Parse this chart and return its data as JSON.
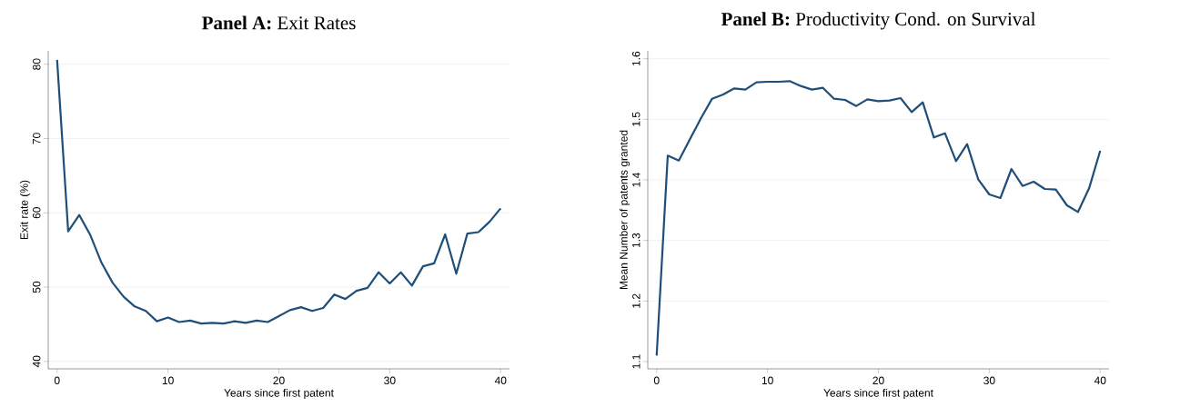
{
  "chart_data": [
    {
      "type": "line",
      "title": "**Panel A:** Exit Rates",
      "xlabel": "Years since first patent",
      "ylabel": "Exit rate (%)",
      "x": [
        0,
        1,
        2,
        3,
        4,
        5,
        6,
        7,
        8,
        9,
        10,
        11,
        12,
        13,
        14,
        15,
        16,
        17,
        18,
        19,
        20,
        21,
        22,
        23,
        24,
        25,
        26,
        27,
        28,
        29,
        30,
        31,
        32,
        33,
        34,
        35,
        36,
        37,
        38,
        39,
        40
      ],
      "series": [
        {
          "color": "#1f4e79",
          "values": [
            80.6,
            57.5,
            59.7,
            57,
            53.3,
            50.6,
            48.7,
            47.4,
            46.8,
            45.4,
            45.9,
            45.3,
            45.5,
            45.1,
            45.2,
            45.1,
            45.4,
            45.2,
            45.5,
            45.3,
            46.1,
            46.9,
            47.3,
            46.8,
            47.2,
            49,
            48.4,
            49.5,
            49.9,
            52,
            50.5,
            52,
            50.2,
            52.8,
            53.2,
            57.1,
            51.8,
            57.2,
            57.4,
            58.8,
            60.6
          ]
        }
      ],
      "xlim": [
        -0.8,
        40.8
      ],
      "ylim": [
        39,
        81.8
      ],
      "xticks": [
        0,
        10,
        20,
        30,
        40
      ],
      "yticks": [
        40,
        50,
        60,
        70,
        80
      ],
      "grid": "y",
      "marker": "none",
      "line_style": "solid"
    },
    {
      "type": "line",
      "title": "**Panel B:** Productivity Cond. on Survival",
      "xlabel": "Years since first patent",
      "ylabel": "Mean Number of patents granted",
      "x": [
        0,
        1,
        2,
        3,
        4,
        5,
        6,
        7,
        8,
        9,
        10,
        11,
        12,
        13,
        14,
        15,
        16,
        17,
        18,
        19,
        20,
        21,
        22,
        23,
        24,
        25,
        26,
        27,
        28,
        29,
        30,
        31,
        32,
        33,
        34,
        35,
        36,
        37,
        38,
        39,
        40
      ],
      "series": [
        {
          "color": "#1f4e79",
          "values": [
            1.11,
            1.44,
            1.432,
            1.467,
            1.502,
            1.534,
            1.541,
            1.551,
            1.549,
            1.561,
            1.562,
            1.562,
            1.563,
            1.555,
            1.549,
            1.552,
            1.534,
            1.532,
            1.522,
            1.533,
            1.53,
            1.531,
            1.535,
            1.512,
            1.528,
            1.47,
            1.477,
            1.431,
            1.459,
            1.401,
            1.376,
            1.37,
            1.418,
            1.39,
            1.397,
            1.385,
            1.384,
            1.358,
            1.347,
            1.386,
            1.448
          ]
        }
      ],
      "xlim": [
        -0.8,
        40.8
      ],
      "ylim": [
        1.088,
        1.613
      ],
      "xticks": [
        0,
        10,
        20,
        30,
        40
      ],
      "yticks": [
        1.1,
        1.2,
        1.3,
        1.4,
        1.5,
        1.6
      ],
      "grid": "y",
      "marker": "none",
      "line_style": "solid"
    }
  ]
}
